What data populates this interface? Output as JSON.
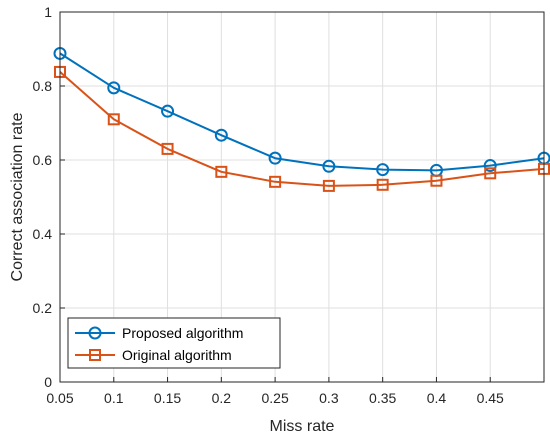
{
  "chart_data": {
    "type": "line",
    "title": "",
    "xlabel": "Miss rate",
    "ylabel": "Correct association rate",
    "xlim": [
      0.05,
      0.5
    ],
    "ylim": [
      0,
      1
    ],
    "x_ticks": [
      0.05,
      0.1,
      0.15,
      0.2,
      0.25,
      0.3,
      0.35,
      0.4,
      0.45
    ],
    "x_tick_labels": [
      "0.05",
      "0.1",
      "0.15",
      "0.2",
      "0.25",
      "0.3",
      "0.35",
      "0.4",
      "0.45"
    ],
    "y_ticks": [
      0,
      0.2,
      0.4,
      0.6,
      0.8,
      1
    ],
    "y_tick_labels": [
      "0",
      "0.2",
      "0.4",
      "0.6",
      "0.8",
      "1"
    ],
    "grid": true,
    "legend_position": "bottom-left",
    "x": [
      0.05,
      0.1,
      0.15,
      0.2,
      0.25,
      0.3,
      0.35,
      0.4,
      0.45,
      0.5
    ],
    "series": [
      {
        "name": "Proposed algorithm",
        "marker": "circle",
        "color": "#0072BD",
        "values": [
          0.888,
          0.795,
          0.732,
          0.667,
          0.605,
          0.583,
          0.574,
          0.572,
          0.585,
          0.605
        ]
      },
      {
        "name": "Original algorithm",
        "marker": "square",
        "color": "#D95319",
        "values": [
          0.838,
          0.71,
          0.63,
          0.568,
          0.541,
          0.53,
          0.533,
          0.544,
          0.564,
          0.576
        ]
      }
    ]
  }
}
